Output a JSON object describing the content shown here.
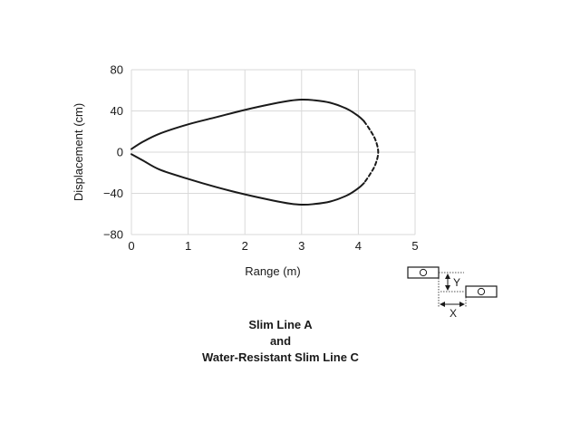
{
  "chart_data": {
    "type": "line",
    "xlabel": "Range (m)",
    "ylabel": "Displacement (cm)",
    "xlim": [
      0,
      5
    ],
    "ylim": [
      -80,
      80
    ],
    "x_ticks": [
      0,
      1,
      2,
      3,
      4,
      5
    ],
    "y_ticks": [
      80,
      40,
      0,
      -40,
      -80
    ],
    "y_tick_labels": [
      "80",
      "40",
      "0",
      "−40",
      "−80"
    ],
    "grid": true,
    "series": [
      {
        "style": "solid",
        "color": "#1a1a1a",
        "x": [
          0,
          0.2,
          0.5,
          1.0,
          1.5,
          2.0,
          2.5,
          2.8,
          3.0,
          3.2,
          3.5,
          3.8,
          4.0,
          4.1
        ],
        "y": [
          3,
          10,
          18,
          27,
          34,
          41,
          47,
          50,
          51,
          50.5,
          48,
          42,
          35,
          30
        ]
      },
      {
        "style": "dashed",
        "color": "#1a1a1a",
        "x": [
          4.1,
          4.2,
          4.3,
          4.35,
          4.3,
          4.2,
          4.1
        ],
        "y": [
          30,
          22,
          12,
          0,
          -12,
          -22,
          -30
        ]
      },
      {
        "style": "solid",
        "color": "#1a1a1a",
        "x": [
          0,
          0.2,
          0.5,
          1.0,
          1.5,
          2.0,
          2.5,
          2.8,
          3.0,
          3.2,
          3.5,
          3.8,
          4.0,
          4.1
        ],
        "y": [
          -2,
          -8,
          -17,
          -26,
          -34,
          -41,
          -47,
          -50,
          -51,
          -50.5,
          -48,
          -42,
          -35,
          -30
        ]
      }
    ]
  },
  "inset": {
    "x_label": "X",
    "y_label": "Y"
  },
  "caption": {
    "line1": "Slim Line A",
    "line2": "and",
    "line3": "Water-Resistant Slim Line C"
  }
}
